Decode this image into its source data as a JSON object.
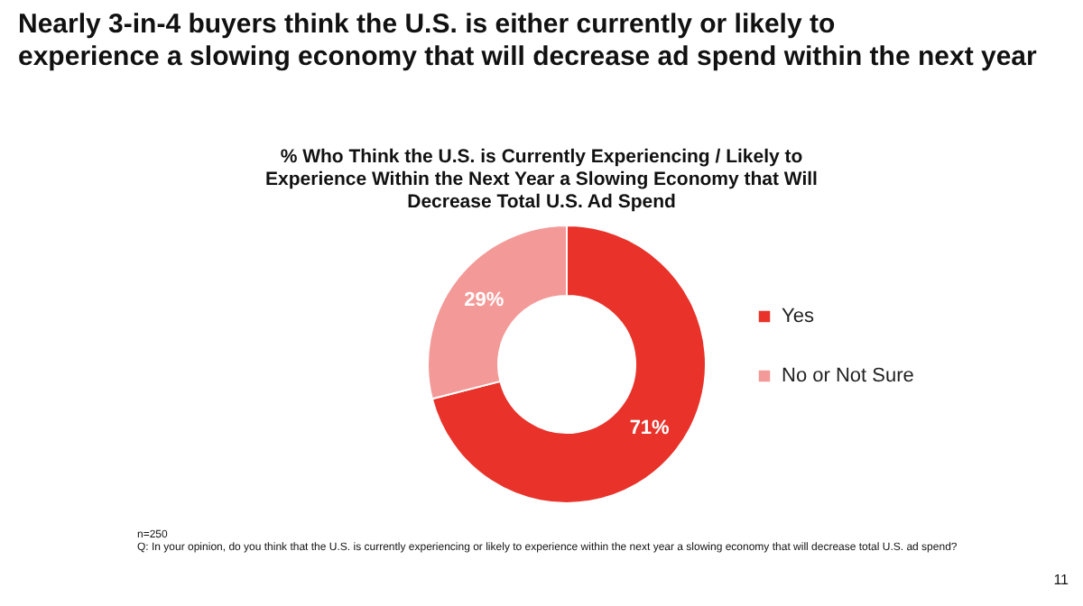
{
  "chart_data": {
    "type": "donut",
    "title": "Nearly 3-in-4 buyers think the U.S. is either currently or likely to experience a slowing economy that will decrease ad spend within the next year",
    "subtitle": "% Who Think the U.S. is Currently Experiencing / Likely to Experience Within the Next Year a Slowing Economy that Will Decrease Total U.S. Ad Spend",
    "categories": [
      "Yes",
      "No or Not Sure"
    ],
    "values": [
      71,
      29
    ],
    "colors": [
      "#e8322a",
      "#f39a98"
    ],
    "value_labels": [
      "71%",
      "29%"
    ],
    "legend": "right",
    "annotations": [
      "n=250",
      "Q: In your opinion, do you think that the U.S. is currently experiencing or likely to experience within the next year a slowing economy that will decrease total U.S. ad spend?",
      "11"
    ]
  }
}
